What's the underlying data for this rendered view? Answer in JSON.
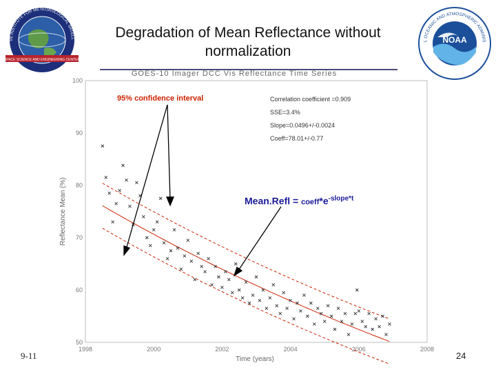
{
  "slide": {
    "title_line1": "Degradation of Mean Reflectance without",
    "title_line2": "normalization",
    "footer_left": "9-11",
    "page_number": "24"
  },
  "logos": {
    "left_text": "COOPERATIVE INSTITUTE FOR METEOROLOGICAL SATELLITE STUDIES",
    "left_text_bottom": "SPACE SCIENCE AND ENGINEERING CENTER",
    "right_center": "NOAA",
    "right_text": "NATIONAL OCEANIC AND ATMOSPHERIC ADMINISTRATION",
    "colors": {
      "noaa_blue": "#1b4f9a",
      "noaa_light": "#62b4e8",
      "cimss_blue": "#1d2f7a"
    }
  },
  "annotations": {
    "confidence_label": "95% confidence interval",
    "correlation": "Correlation coefficient =0.909",
    "sse": "SSE=3.4%",
    "slope": "Slope=0.0496+/-0.0024",
    "coeff": "Coeff=78.01+/-0.77",
    "formula_main": "Mean.Refl = ",
    "formula_coeff": "coeff",
    "formula_mid": "*e",
    "formula_exp": "-slope*t",
    "colors": {
      "fit": "#cc2200",
      "formula": "#1a1a9a",
      "arrow": "#000000"
    }
  },
  "chart_data": {
    "type": "scatter",
    "title": "GOES-10 Imager DCC Vis Reflectance Time Series",
    "xlabel": "Time (years)",
    "ylabel": "Reflectance Mean (%)",
    "xlim": [
      1998,
      2008
    ],
    "ylim": [
      50,
      100
    ],
    "xticks": [
      1998,
      2000,
      2002,
      2004,
      2006,
      2008
    ],
    "yticks": [
      50,
      60,
      70,
      80,
      90,
      100
    ],
    "fit": {
      "coeff": 78.01,
      "slope": 0.0496,
      "t0": 1998,
      "ci_offset": 4.3
    },
    "points": [
      [
        1998.5,
        87.5
      ],
      [
        1998.6,
        81.5
      ],
      [
        1998.7,
        78.5
      ],
      [
        1998.8,
        73.0
      ],
      [
        1998.9,
        76.5
      ],
      [
        1999.0,
        79.0
      ],
      [
        1999.1,
        83.8
      ],
      [
        1999.2,
        81.0
      ],
      [
        1999.3,
        76.0
      ],
      [
        1999.4,
        72.5
      ],
      [
        1999.5,
        80.5
      ],
      [
        1999.6,
        78.0
      ],
      [
        1999.7,
        74.0
      ],
      [
        1999.8,
        70.0
      ],
      [
        1999.9,
        68.5
      ],
      [
        2000.0,
        71.5
      ],
      [
        2000.1,
        73.0
      ],
      [
        2000.2,
        77.5
      ],
      [
        2000.3,
        69.0
      ],
      [
        2000.4,
        66.0
      ],
      [
        2000.5,
        67.5
      ],
      [
        2000.6,
        71.5
      ],
      [
        2000.7,
        68.0
      ],
      [
        2000.8,
        64.0
      ],
      [
        2000.9,
        66.5
      ],
      [
        2001.0,
        69.5
      ],
      [
        2001.1,
        65.5
      ],
      [
        2001.2,
        62.0
      ],
      [
        2001.3,
        67.0
      ],
      [
        2001.4,
        64.5
      ],
      [
        2001.5,
        63.5
      ],
      [
        2001.6,
        66.0
      ],
      [
        2001.7,
        61.0
      ],
      [
        2001.8,
        64.5
      ],
      [
        2001.9,
        62.5
      ],
      [
        2002.0,
        60.5
      ],
      [
        2002.1,
        63.5
      ],
      [
        2002.2,
        62.0
      ],
      [
        2002.3,
        59.5
      ],
      [
        2002.4,
        65.0
      ],
      [
        2002.5,
        60.0
      ],
      [
        2002.6,
        58.5
      ],
      [
        2002.7,
        61.5
      ],
      [
        2002.8,
        57.5
      ],
      [
        2002.9,
        59.0
      ],
      [
        2003.0,
        62.5
      ],
      [
        2003.1,
        58.0
      ],
      [
        2003.2,
        60.0
      ],
      [
        2003.3,
        56.5
      ],
      [
        2003.4,
        58.5
      ],
      [
        2003.5,
        61.0
      ],
      [
        2003.6,
        57.0
      ],
      [
        2003.7,
        55.5
      ],
      [
        2003.8,
        59.5
      ],
      [
        2003.9,
        56.5
      ],
      [
        2004.0,
        58.0
      ],
      [
        2004.1,
        54.5
      ],
      [
        2004.2,
        57.5
      ],
      [
        2004.3,
        56.0
      ],
      [
        2004.4,
        59.0
      ],
      [
        2004.5,
        55.0
      ],
      [
        2004.6,
        57.5
      ],
      [
        2004.7,
        53.5
      ],
      [
        2004.8,
        56.5
      ],
      [
        2004.9,
        55.5
      ],
      [
        2005.0,
        54.0
      ],
      [
        2005.1,
        57.0
      ],
      [
        2005.2,
        55.0
      ],
      [
        2005.3,
        52.5
      ],
      [
        2005.4,
        56.5
      ],
      [
        2005.5,
        54.0
      ],
      [
        2005.6,
        55.5
      ],
      [
        2005.7,
        51.5
      ],
      [
        2005.8,
        53.5
      ],
      [
        2005.9,
        55.5
      ],
      [
        2006.0,
        56.0
      ],
      [
        2006.1,
        54.0
      ],
      [
        2006.2,
        53.0
      ],
      [
        2006.3,
        55.5
      ],
      [
        2006.4,
        52.5
      ],
      [
        2006.5,
        54.5
      ],
      [
        2006.6,
        53.0
      ],
      [
        2006.7,
        55.0
      ],
      [
        2006.8,
        51.5
      ],
      [
        2006.9,
        53.5
      ],
      [
        2005.95,
        60.0
      ]
    ]
  }
}
